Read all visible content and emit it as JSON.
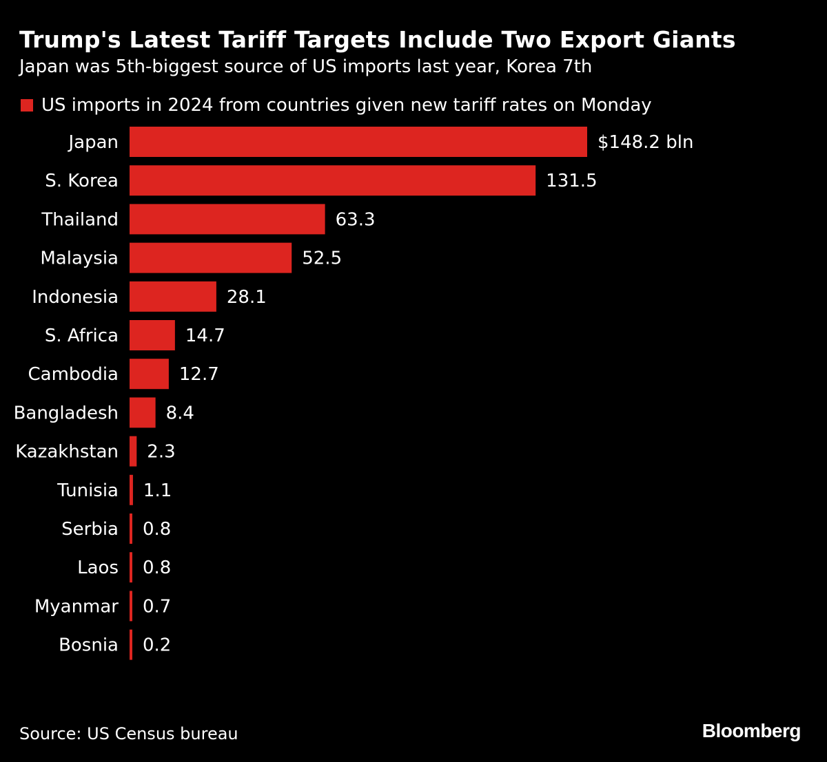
{
  "chart_data": {
    "type": "bar",
    "orientation": "horizontal",
    "title": "Trump's Latest Tariff Targets Include Two Export Giants",
    "subtitle": "Japan was 5th-biggest source of US imports last year, Korea 7th",
    "categories": [
      "Japan",
      "S. Korea",
      "Thailand",
      "Malaysia",
      "Indonesia",
      "S. Africa",
      "Cambodia",
      "Bangladesh",
      "Kazakhstan",
      "Tunisia",
      "Serbia",
      "Laos",
      "Myanmar",
      "Bosnia"
    ],
    "series": [
      {
        "name": "US imports in 2024 from countries given new tariff rates on Monday",
        "values": [
          148.2,
          131.5,
          63.3,
          52.5,
          28.1,
          14.7,
          12.7,
          8.4,
          2.3,
          1.1,
          0.8,
          0.8,
          0.7,
          0.2
        ],
        "color": "#dd2520"
      }
    ],
    "data_labels": [
      "$148.2 bln",
      "131.5",
      "63.3",
      "52.5",
      "28.1",
      "14.7",
      "12.7",
      "8.4",
      "2.3",
      "1.1",
      "0.8",
      "0.8",
      "0.7",
      "0.2"
    ],
    "xlim": [
      0,
      148.2
    ],
    "grid": false,
    "legend_position": "top-left",
    "source": "Source: US Census bureau",
    "logo": "Bloomberg",
    "background": "#000000"
  }
}
